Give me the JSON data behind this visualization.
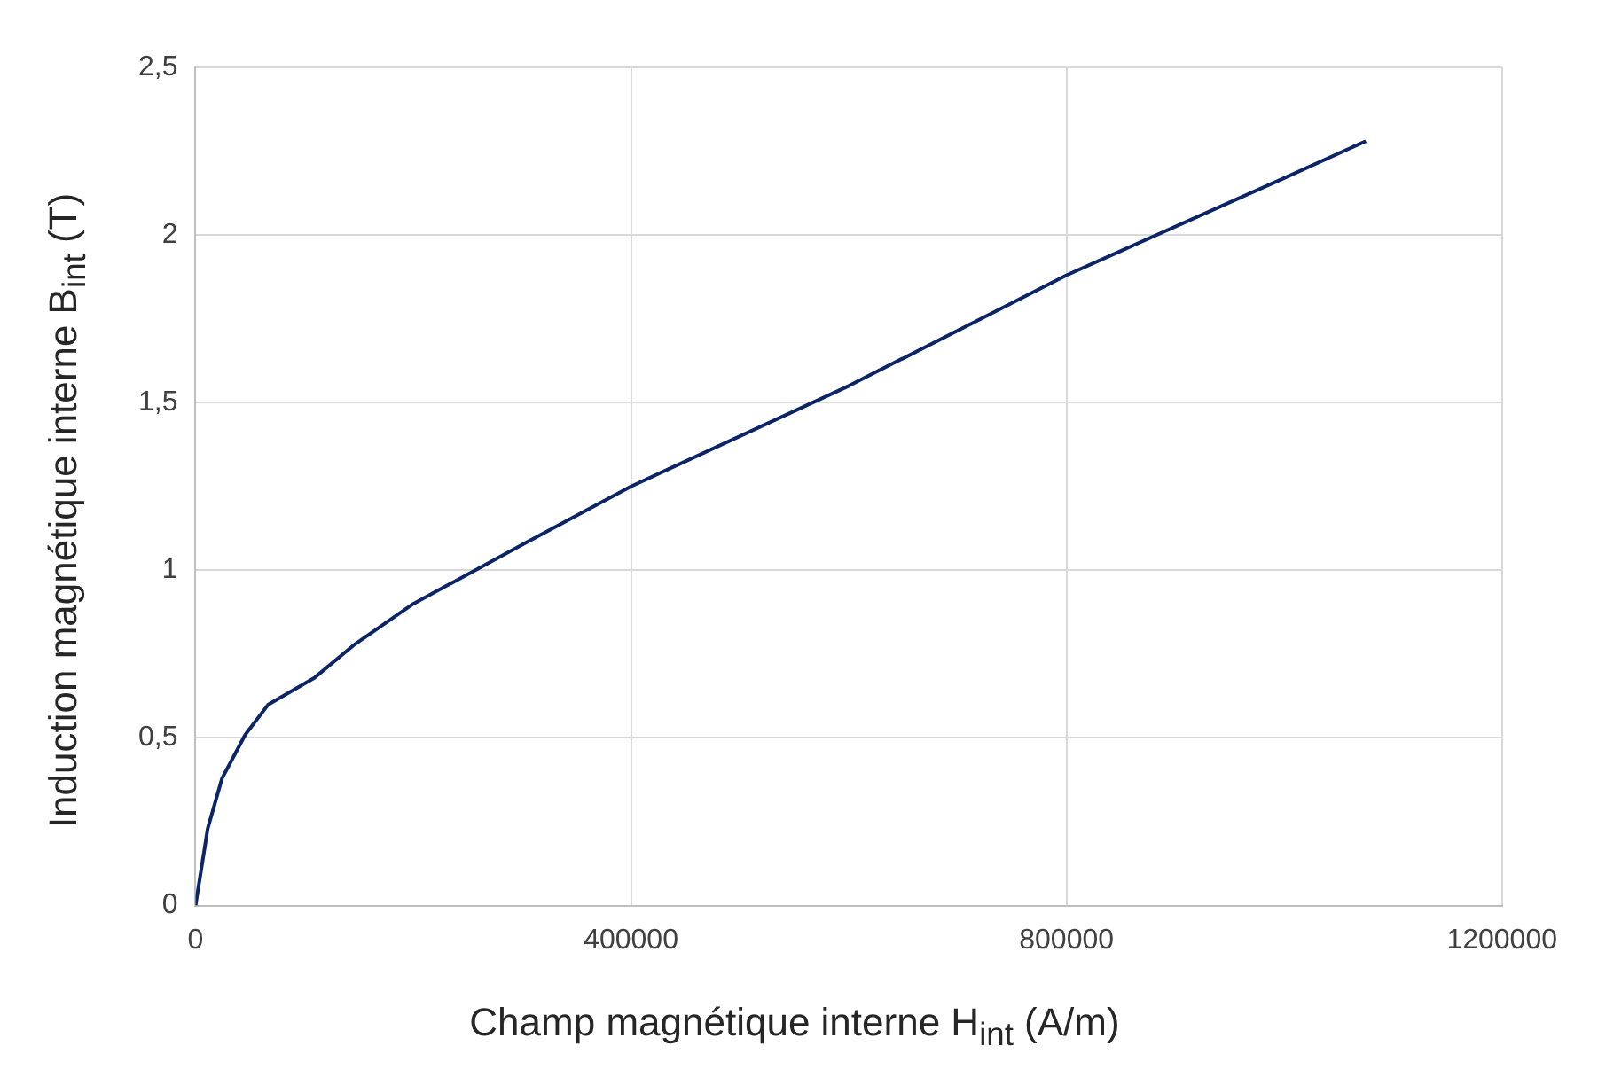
{
  "chart_data": {
    "type": "line",
    "xlabel": "Champ magnétique interne H$_{int}$ (A/m)",
    "ylabel": "Induction magnétique interne B$_{int}$ (T)",
    "x": [
      0,
      11200,
      24400,
      45700,
      66900,
      109500,
      146600,
      200000,
      300000,
      400000,
      600000,
      800000,
      1000000,
      1075000
    ],
    "series": [
      {
        "color": "#0b2566",
        "values": [
          0,
          0.23,
          0.38,
          0.51,
          0.6,
          0.68,
          0.78,
          0.9,
          1.076,
          1.25,
          1.55,
          1.88,
          2.17,
          2.28
        ]
      }
    ],
    "xlim": [
      0,
      1200000
    ],
    "xticks": [
      0,
      400000,
      800000,
      1200000
    ],
    "ylim": [
      0,
      2.5
    ],
    "yticks": [
      0,
      {
        "value": 0.5,
        "label": "0,5"
      },
      1,
      {
        "value": 1.5,
        "label": "1,5"
      },
      2,
      {
        "value": 2.5,
        "label": "2,5"
      }
    ],
    "grid": true,
    "legend": false,
    "marker": "none",
    "line_style": "solid"
  }
}
